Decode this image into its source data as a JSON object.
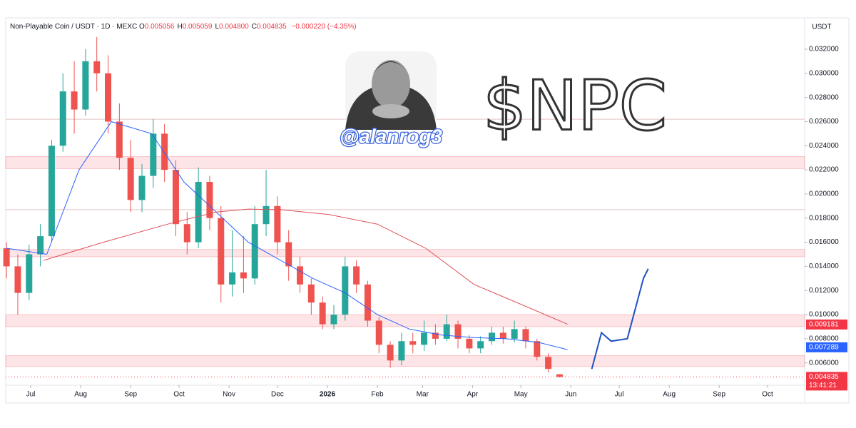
{
  "chart_data": {
    "type": "candlestick",
    "symbol": "Non-Playable Coin / USDT · 1D · MEXC",
    "ohlc": [
      {
        "key": "O",
        "value": "0.005056"
      },
      {
        "key": "H",
        "value": "0.005059"
      },
      {
        "key": "L",
        "value": "0.004800"
      },
      {
        "key": "C",
        "value": "0.004835"
      }
    ],
    "change": "−0.000220 (−4.35%)",
    "currency": "USDT",
    "handle": "@alanrog3",
    "ticker": "$NPC",
    "up_color": "#26a69a",
    "down_color": "#ef5350",
    "x": [
      0,
      7,
      14,
      21,
      28,
      35,
      42,
      49,
      56,
      63,
      70,
      77,
      84,
      91,
      98,
      105,
      112,
      119,
      126,
      133,
      140,
      147,
      154,
      161,
      168,
      175,
      182,
      189,
      196,
      203,
      210,
      217,
      224,
      231,
      238,
      245,
      252,
      259,
      266,
      273,
      280,
      287,
      294,
      301,
      308,
      315,
      322,
      329,
      336,
      343
    ],
    "open": [
      0.0155,
      0.014,
      0.0118,
      0.015,
      0.0165,
      0.024,
      0.0285,
      0.027,
      0.031,
      0.03,
      0.026,
      0.023,
      0.0195,
      0.0215,
      0.025,
      0.022,
      0.0175,
      0.016,
      0.021,
      0.018,
      0.0125,
      0.0135,
      0.013,
      0.0175,
      0.019,
      0.016,
      0.014,
      0.0125,
      0.011,
      0.0092,
      0.01,
      0.014,
      0.0125,
      0.0095,
      0.0075,
      0.0062,
      0.0078,
      0.0075,
      0.0085,
      0.008,
      0.0092,
      0.008,
      0.0072,
      0.0078,
      0.0085,
      0.008,
      0.0088,
      0.0078,
      0.0065,
      0.005056
    ],
    "high": [
      0.016,
      0.015,
      0.0158,
      0.0175,
      0.0245,
      0.03,
      0.031,
      0.032,
      0.033,
      0.0315,
      0.0275,
      0.0245,
      0.0225,
      0.0262,
      0.0258,
      0.0228,
      0.0185,
      0.0222,
      0.0215,
      0.019,
      0.017,
      0.0165,
      0.019,
      0.022,
      0.0198,
      0.017,
      0.0148,
      0.013,
      0.0115,
      0.0108,
      0.0148,
      0.0145,
      0.0128,
      0.0098,
      0.0078,
      0.0085,
      0.0085,
      0.0095,
      0.0092,
      0.01,
      0.0095,
      0.0083,
      0.0082,
      0.009,
      0.009,
      0.0095,
      0.009,
      0.008,
      0.0068,
      0.005059
    ],
    "low": [
      0.013,
      0.01,
      0.0112,
      0.014,
      0.016,
      0.0235,
      0.025,
      0.0265,
      0.0285,
      0.025,
      0.022,
      0.0185,
      0.0185,
      0.0205,
      0.021,
      0.0165,
      0.015,
      0.0155,
      0.017,
      0.011,
      0.0115,
      0.0118,
      0.0125,
      0.0165,
      0.015,
      0.0128,
      0.0118,
      0.01,
      0.0088,
      0.0088,
      0.0095,
      0.0118,
      0.009,
      0.0068,
      0.0056,
      0.0058,
      0.0068,
      0.007,
      0.0075,
      0.0078,
      0.0072,
      0.0068,
      0.0068,
      0.0075,
      0.0076,
      0.0077,
      0.0072,
      0.0062,
      0.0052,
      0.0048
    ],
    "close": [
      0.014,
      0.0118,
      0.015,
      0.0165,
      0.024,
      0.0285,
      0.027,
      0.031,
      0.03,
      0.026,
      0.023,
      0.0195,
      0.0215,
      0.025,
      0.022,
      0.0175,
      0.016,
      0.021,
      0.018,
      0.0125,
      0.0135,
      0.013,
      0.0175,
      0.019,
      0.016,
      0.014,
      0.0125,
      0.011,
      0.0092,
      0.01,
      0.014,
      0.0125,
      0.0095,
      0.0075,
      0.0062,
      0.0078,
      0.0075,
      0.0085,
      0.008,
      0.0092,
      0.008,
      0.0072,
      0.0078,
      0.0085,
      0.008,
      0.0088,
      0.0078,
      0.0065,
      0.0055,
      0.004835
    ],
    "lines": [
      {
        "color": "#2962ff",
        "x": [
          0,
          25,
          45,
          65,
          90,
          110,
          130,
          150,
          170,
          190,
          210,
          230,
          250,
          270,
          290,
          310,
          330,
          348
        ],
        "values": [
          0.0155,
          0.015,
          0.022,
          0.026,
          0.025,
          0.021,
          0.0185,
          0.016,
          0.0145,
          0.013,
          0.0118,
          0.01,
          0.0088,
          0.0083,
          0.0081,
          0.008,
          0.0077,
          0.0071
        ]
      },
      {
        "color": "#e04f5a",
        "x": [
          23,
          60,
          100,
          130,
          150,
          170,
          200,
          230,
          260,
          290,
          320,
          348
        ],
        "values": [
          0.0145,
          0.016,
          0.0175,
          0.0185,
          0.01875,
          0.0187,
          0.0183,
          0.0175,
          0.0155,
          0.0125,
          0.0108,
          0.0092
        ]
      },
      {
        "color": "#1f4fc4",
        "x": [
          363,
          369,
          375,
          385,
          395,
          398
        ],
        "values": [
          0.0055,
          0.0085,
          0.0078,
          0.008,
          0.013,
          0.0138
        ]
      }
    ],
    "zones": [
      [
        0.0221,
        0.0231
      ],
      [
        0.0148,
        0.0154
      ],
      [
        0.009,
        0.01
      ],
      [
        0.0057,
        0.0066
      ]
    ],
    "levels": [
      0.0262,
      0.0187
    ],
    "badges": [
      {
        "value": 0.009181,
        "color": "#f23645"
      },
      {
        "value": 0.007289,
        "color": "#2962ff"
      },
      {
        "value": 0.004835,
        "color": "#f23645"
      }
    ],
    "countdown": "13:41:21",
    "ylim": [
      0.00415,
      0.0346
    ],
    "yticks": [
      {
        "value": 0.006,
        "label": "0.006000"
      },
      {
        "value": 0.008,
        "label": "0.008000"
      },
      {
        "value": 0.01,
        "label": "0.010000"
      },
      {
        "value": 0.012,
        "label": "0.012000"
      },
      {
        "value": 0.014,
        "label": "0.014000"
      },
      {
        "value": 0.016,
        "label": "0.016000"
      },
      {
        "value": 0.018,
        "label": "0.018000"
      },
      {
        "value": 0.02,
        "label": "0.020000"
      },
      {
        "value": 0.022,
        "label": "0.022000"
      },
      {
        "value": 0.024,
        "label": "0.024000"
      },
      {
        "value": 0.026,
        "label": "0.026000"
      },
      {
        "value": 0.028,
        "label": "0.028000"
      },
      {
        "value": 0.03,
        "label": "0.030000"
      },
      {
        "value": 0.032,
        "label": "0.032000"
      }
    ],
    "xlim": [
      -0.5,
      495
    ],
    "xticks": [
      {
        "value": 15,
        "label": "Jul"
      },
      {
        "value": 46,
        "label": "Aug"
      },
      {
        "value": 77,
        "label": "Sep"
      },
      {
        "value": 107,
        "label": "Oct"
      },
      {
        "value": 138,
        "label": "Nov"
      },
      {
        "value": 168,
        "label": "Dec"
      },
      {
        "value": 199,
        "label": "2026"
      },
      {
        "value": 230,
        "label": "Feb"
      },
      {
        "value": 258,
        "label": "Mar"
      },
      {
        "value": 289,
        "label": "Apr"
      },
      {
        "value": 319,
        "label": "May"
      },
      {
        "value": 350,
        "label": "Jun"
      },
      {
        "value": 380,
        "label": "Jul"
      },
      {
        "value": 411,
        "label": "Aug"
      },
      {
        "value": 442,
        "label": "Sep"
      },
      {
        "value": 472,
        "label": "Oct"
      }
    ]
  }
}
